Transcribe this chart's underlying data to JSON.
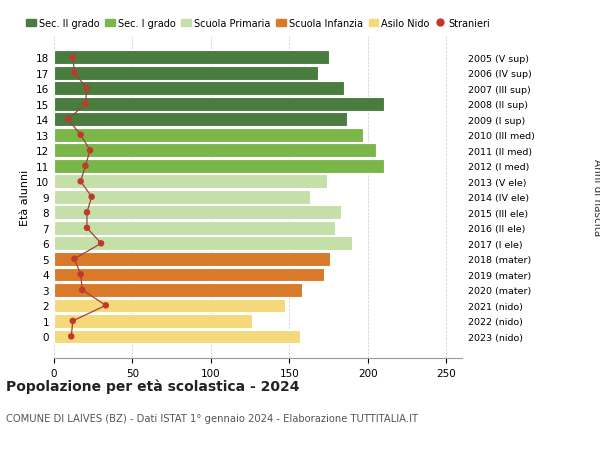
{
  "ages": [
    18,
    17,
    16,
    15,
    14,
    13,
    12,
    11,
    10,
    9,
    8,
    7,
    6,
    5,
    4,
    3,
    2,
    1,
    0
  ],
  "bar_values": [
    175,
    168,
    185,
    210,
    187,
    197,
    205,
    210,
    174,
    163,
    183,
    179,
    190,
    176,
    172,
    158,
    147,
    126,
    157
  ],
  "stranieri_values": [
    12,
    13,
    21,
    20,
    9,
    17,
    23,
    20,
    17,
    24,
    21,
    21,
    30,
    13,
    17,
    18,
    33,
    12,
    11
  ],
  "bar_colors": [
    "#4a7c3f",
    "#4a7c3f",
    "#4a7c3f",
    "#4a7c3f",
    "#4a7c3f",
    "#7ab648",
    "#7ab648",
    "#7ab648",
    "#c5dfa8",
    "#c5dfa8",
    "#c5dfa8",
    "#c5dfa8",
    "#c5dfa8",
    "#d97a2a",
    "#d97a2a",
    "#d97a2a",
    "#f5d87a",
    "#f5d87a",
    "#f5d87a"
  ],
  "right_labels": [
    "2005 (V sup)",
    "2006 (IV sup)",
    "2007 (III sup)",
    "2008 (II sup)",
    "2009 (I sup)",
    "2010 (III med)",
    "2011 (II med)",
    "2012 (I med)",
    "2013 (V ele)",
    "2014 (IV ele)",
    "2015 (III ele)",
    "2016 (II ele)",
    "2017 (I ele)",
    "2018 (mater)",
    "2019 (mater)",
    "2020 (mater)",
    "2021 (nido)",
    "2022 (nido)",
    "2023 (nido)"
  ],
  "legend_labels": [
    "Sec. II grado",
    "Sec. I grado",
    "Scuola Primaria",
    "Scuola Infanzia",
    "Asilo Nido",
    "Stranieri"
  ],
  "legend_colors": [
    "#4a7c3f",
    "#7ab648",
    "#c5dfa8",
    "#d97a2a",
    "#f5d87a",
    "#c0392b"
  ],
  "ylabel": "Età alunni",
  "right_ylabel": "Anni di nascita",
  "title": "Popolazione per età scolastica - 2024",
  "subtitle": "COMUNE DI LAIVES (BZ) - Dati ISTAT 1° gennaio 2024 - Elaborazione TUTTITALIA.IT",
  "xlim": [
    0,
    260
  ],
  "xticks": [
    0,
    50,
    100,
    150,
    200,
    250
  ],
  "background_color": "#ffffff",
  "grid_color": "#bbbbbb",
  "stranieri_color": "#c0392b",
  "stranieri_line_color": "#a04040"
}
